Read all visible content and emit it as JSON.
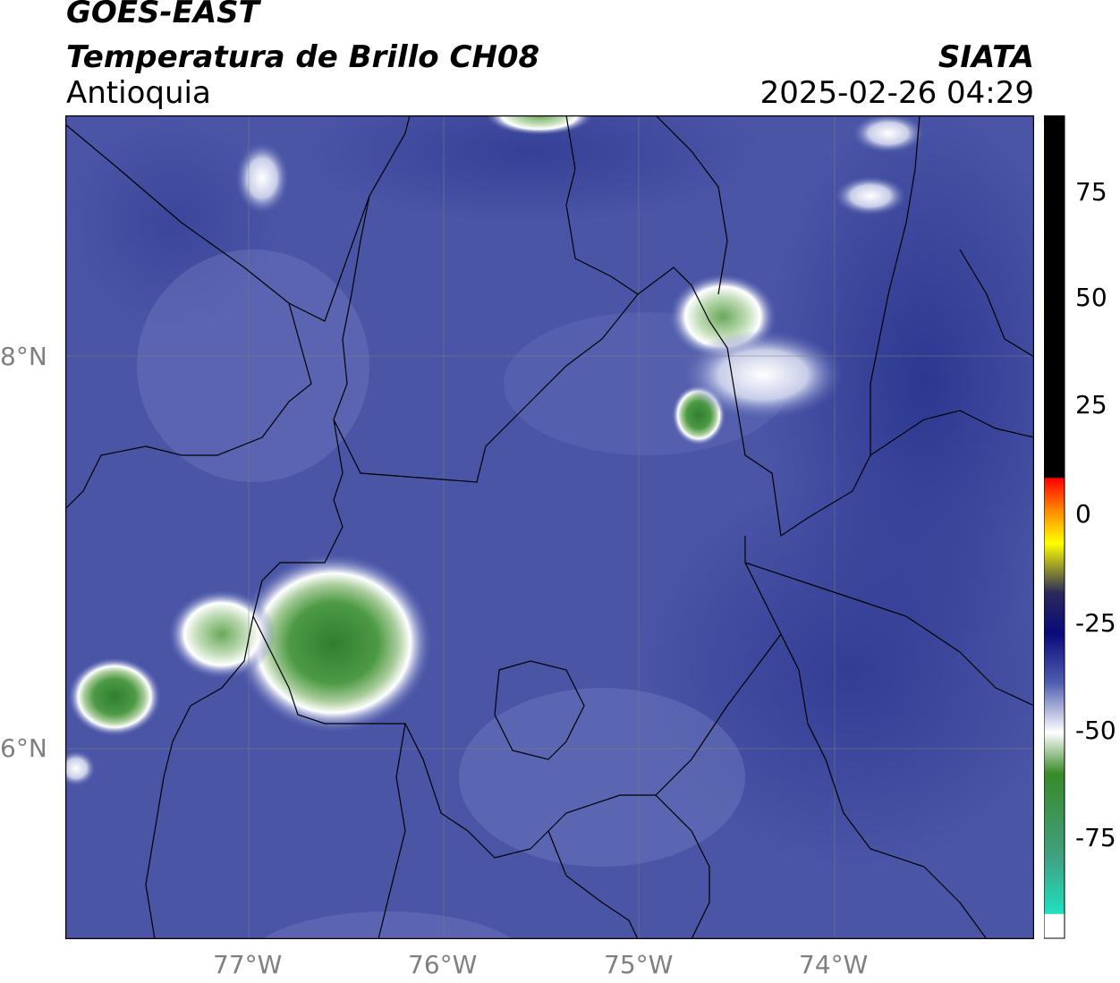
{
  "header": {
    "satellite": "GOES-EAST",
    "product": "Temperatura de Brillo CH08",
    "region": "Antioquia",
    "agency": "SIATA",
    "datetime": "2025-02-26 04:29"
  },
  "map": {
    "lat_ticks": [
      "8°N",
      "6°N"
    ],
    "lon_ticks": [
      "77°W",
      "76°W",
      "75°W",
      "74°W"
    ]
  },
  "colorbar": {
    "ticks": [
      "75",
      "50",
      "25",
      "0",
      "-25",
      "-50",
      "-75"
    ],
    "colors": [
      "#000000",
      "#ff0000",
      "#ff8800",
      "#ffff00",
      "#2a2a5a",
      "#0a0a7a",
      "#5060b0",
      "#ffffff",
      "#3a8a2a",
      "#20e0c0"
    ]
  }
}
